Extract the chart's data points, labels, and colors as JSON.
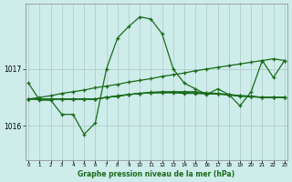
{
  "x": [
    0,
    1,
    2,
    3,
    4,
    5,
    6,
    7,
    8,
    9,
    10,
    11,
    12,
    13,
    14,
    15,
    16,
    17,
    18,
    19,
    20,
    21,
    22,
    23
  ],
  "line_wavy": [
    1016.75,
    1016.45,
    1016.45,
    1016.2,
    1016.2,
    1015.85,
    1016.05,
    1017.0,
    1017.55,
    1017.75,
    1017.92,
    1017.88,
    1017.62,
    1017.0,
    1016.75,
    1016.65,
    1016.55,
    1016.65,
    1016.55,
    1016.35,
    1016.6,
    1017.15,
    1016.85,
    1017.15
  ],
  "line_flat1": [
    1016.47,
    1016.47,
    1016.47,
    1016.47,
    1016.47,
    1016.47,
    1016.47,
    1016.5,
    1016.52,
    1016.55,
    1016.57,
    1016.58,
    1016.58,
    1016.58,
    1016.57,
    1016.57,
    1016.56,
    1016.56,
    1016.55,
    1016.53,
    1016.52,
    1016.5,
    1016.5,
    1016.5
  ],
  "line_flat2": [
    1016.47,
    1016.47,
    1016.47,
    1016.47,
    1016.47,
    1016.47,
    1016.47,
    1016.5,
    1016.53,
    1016.55,
    1016.57,
    1016.59,
    1016.6,
    1016.6,
    1016.6,
    1016.6,
    1016.58,
    1016.57,
    1016.55,
    1016.53,
    1016.52,
    1016.5,
    1016.5,
    1016.5
  ],
  "line_flat3": [
    1016.47,
    1016.47,
    1016.47,
    1016.47,
    1016.47,
    1016.47,
    1016.47,
    1016.5,
    1016.52,
    1016.55,
    1016.57,
    1016.58,
    1016.59,
    1016.59,
    1016.59,
    1016.58,
    1016.57,
    1016.56,
    1016.54,
    1016.52,
    1016.51,
    1016.5,
    1016.5,
    1016.5
  ],
  "line_diag": [
    1016.47,
    1016.5,
    1016.53,
    1016.57,
    1016.6,
    1016.63,
    1016.67,
    1016.7,
    1016.73,
    1016.77,
    1016.8,
    1016.83,
    1016.87,
    1016.9,
    1016.93,
    1016.97,
    1017.0,
    1017.03,
    1017.06,
    1017.09,
    1017.12,
    1017.15,
    1017.18,
    1017.15
  ],
  "bg_color": "#cdecea",
  "line_color": "#1a6b1a",
  "grid_color": "#b0c8c8",
  "xlabel": "Graphe pression niveau de la mer (hPa)",
  "yticks": [
    1016,
    1017
  ],
  "ylim": [
    1015.4,
    1018.15
  ],
  "xlim": [
    -0.3,
    23.3
  ],
  "xticks": [
    0,
    1,
    2,
    3,
    4,
    5,
    6,
    7,
    8,
    9,
    10,
    11,
    12,
    13,
    14,
    15,
    16,
    17,
    18,
    19,
    20,
    21,
    22,
    23
  ]
}
